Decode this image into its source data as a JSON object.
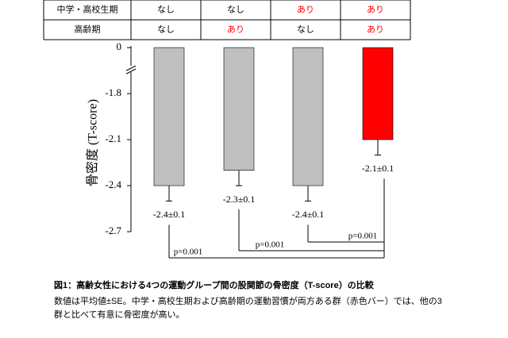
{
  "table": {
    "rows": [
      [
        "中学・高校生期",
        "なし",
        "なし",
        "あり",
        "あり"
      ],
      [
        "高齢期",
        "なし",
        "あり",
        "なし",
        "あり"
      ]
    ],
    "colors": [
      [
        "#000000",
        "#000000",
        "#000000",
        "#ff0000",
        "#ff0000"
      ],
      [
        "#000000",
        "#000000",
        "#ff0000",
        "#000000",
        "#ff0000"
      ]
    ]
  },
  "chart_data": {
    "type": "bar",
    "y_label": "骨密度 (T-score)",
    "values": [
      -2.4,
      -2.3,
      -2.4,
      -2.1
    ],
    "errors": [
      0.1,
      0.1,
      0.1,
      0.1
    ],
    "value_labels": [
      "-2.4±0.1",
      "-2.3±0.1",
      "-2.4±0.1",
      "-2.1±0.1"
    ],
    "colors": [
      "#bfbfbf",
      "#bfbfbf",
      "#bfbfbf",
      "#ff0000"
    ],
    "ylim": [
      -2.7,
      0
    ],
    "yticks": [
      0,
      -1.8,
      -2.1,
      -2.4,
      -2.7
    ],
    "axis_break": true,
    "annotations": [
      "p=0.001",
      "p=0.001",
      "p=0.001"
    ]
  },
  "caption": {
    "title": "図1：高齢女性における4つの運動グループ間の股関節の骨密度（T-score）の比較",
    "lines": [
      "数値は平均値±SE。中学・高校生期および高齢期の運動習慣が両方ある群（赤色バー）では、他の3",
      "群と比べて有意に骨密度が高い。"
    ]
  }
}
